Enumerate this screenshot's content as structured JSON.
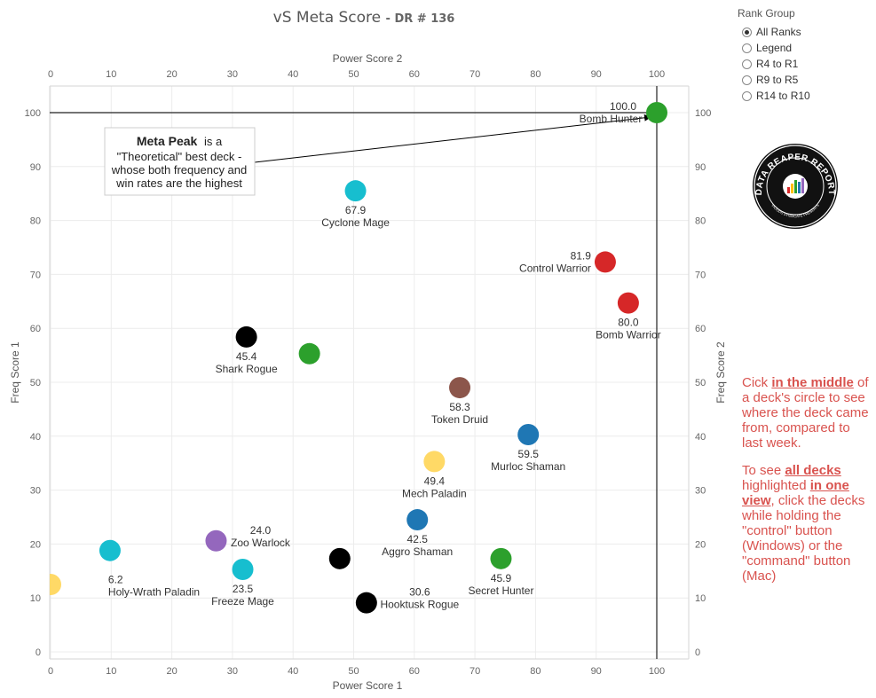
{
  "title": "vS Meta Score",
  "subtitle": "- DR # 136",
  "rank_group": {
    "label": "Rank Group",
    "options": [
      "All Ranks",
      "Legend",
      "R4 to R1",
      "R9 to R5",
      "R14 to R10"
    ],
    "selected": "All Ranks"
  },
  "annotation": {
    "bold": "Meta Peak",
    "text_1": "is a",
    "text_2": "\"Theoretical\" best deck -",
    "text_3": "whose both frequency and",
    "text_4": "win rates are the highest"
  },
  "logo": {
    "text": "DATA REAPER REPORT",
    "subtext": "VICIOUS SYNDICATE PRESENTS"
  },
  "notes": {
    "p1_a": "Cick ",
    "p1_b": "in the middle",
    "p1_c": " of a deck's circle to see where the deck came from, compared to last week.",
    "p2_a": "To see ",
    "p2_b": "all decks",
    "p2_c": " highlighted ",
    "p2_d": "in one view",
    "p2_e": ", click the decks while holding the \"control\" button (Windows) or the \"command\" button (Mac)"
  },
  "chart_data": {
    "type": "scatter",
    "title": "vS Meta Score - DR # 136",
    "xlabel": "Power Score 1",
    "ylabel": "Freq Score 1",
    "x2label": "Power Score 2",
    "y2label": "Freq Score 2",
    "xlim": [
      0,
      105
    ],
    "ylim": [
      0,
      105
    ],
    "xticks": [
      0,
      10,
      20,
      30,
      40,
      50,
      60,
      70,
      80,
      90,
      100
    ],
    "yticks": [
      0,
      10,
      20,
      30,
      40,
      50,
      60,
      70,
      80,
      90,
      100
    ],
    "grid": true,
    "reference_lines": {
      "x": 100,
      "y": 100
    },
    "points": [
      {
        "name": "Bomb Hunter",
        "score": "100.0",
        "x": 100,
        "y": 100,
        "color": "#2ca02c"
      },
      {
        "name": "Cyclone Mage",
        "score": "67.9",
        "x": 50.3,
        "y": 85.5,
        "color": "#17becf"
      },
      {
        "name": "Control Warrior",
        "score": "81.9",
        "x": 91.5,
        "y": 72.3,
        "color": "#d62728"
      },
      {
        "name": "Bomb Warrior",
        "score": "80.0",
        "x": 95.3,
        "y": 64.7,
        "color": "#d62728"
      },
      {
        "name": "Shark Rogue",
        "score": "45.4",
        "x": 32.3,
        "y": 58.4,
        "color": "#000000"
      },
      {
        "name": "",
        "score": "",
        "x": 42.7,
        "y": 55.3,
        "color": "#2ca02c"
      },
      {
        "name": "Token Druid",
        "score": "58.3",
        "x": 67.5,
        "y": 49.0,
        "color": "#8c564b"
      },
      {
        "name": "Murloc Shaman",
        "score": "59.5",
        "x": 78.8,
        "y": 40.3,
        "color": "#1f77b4"
      },
      {
        "name": "Mech Paladin",
        "score": "49.4",
        "x": 63.3,
        "y": 35.3,
        "color": "#ffd966"
      },
      {
        "name": "Aggro Shaman",
        "score": "42.5",
        "x": 60.5,
        "y": 24.5,
        "color": "#1f77b4"
      },
      {
        "name": "Zoo Warlock",
        "score": "24.0",
        "x": 27.3,
        "y": 20.6,
        "color": "#9467bd"
      },
      {
        "name": "Holy-Wrath Paladin",
        "score": "6.2",
        "x": 9.8,
        "y": 18.8,
        "color": "#17becf"
      },
      {
        "name": "Freeze Mage",
        "score": "23.5",
        "x": 31.7,
        "y": 15.3,
        "color": "#17becf"
      },
      {
        "name": "",
        "score": "",
        "x": 47.7,
        "y": 17.3,
        "color": "#000000"
      },
      {
        "name": "Secret Hunter",
        "score": "45.9",
        "x": 74.3,
        "y": 17.3,
        "color": "#2ca02c"
      },
      {
        "name": "Hooktusk Rogue",
        "score": "30.6",
        "x": 52.1,
        "y": 9.1,
        "color": "#000000"
      },
      {
        "name": "",
        "score": "",
        "x": 0,
        "y": 12.5,
        "color": "#ffd966"
      }
    ]
  }
}
